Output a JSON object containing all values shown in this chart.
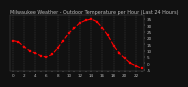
{
  "title": "Milwaukee Weather - Outdoor Temperature per Hour (Last 24 Hours)",
  "hours": [
    0,
    1,
    2,
    3,
    4,
    5,
    6,
    7,
    8,
    9,
    10,
    11,
    12,
    13,
    14,
    15,
    16,
    17,
    18,
    19,
    20,
    21,
    22,
    23
  ],
  "temps": [
    18,
    17,
    13,
    10,
    8,
    6,
    5,
    7,
    12,
    18,
    24,
    28,
    32,
    34,
    35,
    33,
    28,
    22,
    14,
    8,
    4,
    0,
    -2,
    -4
  ],
  "line_color": "#ff0000",
  "marker_color": "#ff0000",
  "bg_color": "#111111",
  "plot_bg_color": "#111111",
  "grid_color": "#555555",
  "text_color": "#bbbbbb",
  "ylim": [
    -6,
    38
  ],
  "yticks": [
    -5,
    0,
    5,
    10,
    15,
    20,
    25,
    30,
    35
  ],
  "xlabel_fontsize": 3.0,
  "ylabel_fontsize": 3.0,
  "title_fontsize": 3.5,
  "line_width": 0.8,
  "marker_size": 1.5,
  "grid_every": 2
}
